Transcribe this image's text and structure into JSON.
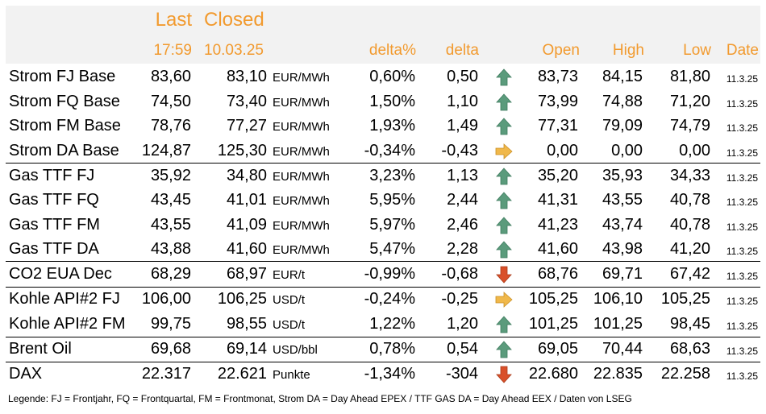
{
  "header": {
    "last": "Last",
    "closed": "Closed",
    "last_time": "17:59",
    "closed_date": "10.03.25",
    "delta_pct": "delta%",
    "delta": "delta",
    "open": "Open",
    "high": "High",
    "low": "Low",
    "date": "Date"
  },
  "colors": {
    "header_text": "#f29a2e",
    "up": "#5b9b7c",
    "down": "#d9502a",
    "flat": "#f0b84a"
  },
  "rows": [
    {
      "name": "Strom FJ Base",
      "last": "83,60",
      "closed": "83,10",
      "unit": "EUR/MWh",
      "delta_pct": "0,60%",
      "delta": "0,50",
      "trend": "up",
      "open": "83,73",
      "high": "84,15",
      "low": "81,80",
      "date": "11.3.25"
    },
    {
      "name": "Strom FQ Base",
      "last": "74,50",
      "closed": "73,40",
      "unit": "EUR/MWh",
      "delta_pct": "1,50%",
      "delta": "1,10",
      "trend": "up",
      "open": "73,99",
      "high": "74,88",
      "low": "71,20",
      "date": "11.3.25"
    },
    {
      "name": "Strom FM Base",
      "last": "78,76",
      "closed": "77,27",
      "unit": "EUR/MWh",
      "delta_pct": "1,93%",
      "delta": "1,49",
      "trend": "up",
      "open": "77,31",
      "high": "79,09",
      "low": "74,79",
      "date": "11.3.25"
    },
    {
      "name": "Strom DA Base",
      "last": "124,87",
      "closed": "125,30",
      "unit": "EUR/MWh",
      "delta_pct": "-0,34%",
      "delta": "-0,43",
      "trend": "flat",
      "open": "0,00",
      "high": "0,00",
      "low": "0,00",
      "date": "11.3.25"
    },
    {
      "name": "Gas TTF FJ",
      "last": "35,92",
      "closed": "34,80",
      "unit": "EUR/MWh",
      "delta_pct": "3,23%",
      "delta": "1,13",
      "trend": "up",
      "open": "35,20",
      "high": "35,93",
      "low": "34,33",
      "date": "11.3.25"
    },
    {
      "name": "Gas TTF FQ",
      "last": "43,45",
      "closed": "41,01",
      "unit": "EUR/MWh",
      "delta_pct": "5,95%",
      "delta": "2,44",
      "trend": "up",
      "open": "41,31",
      "high": "43,55",
      "low": "40,78",
      "date": "11.3.25"
    },
    {
      "name": "Gas TTF FM",
      "last": "43,55",
      "closed": "41,09",
      "unit": "EUR/MWh",
      "delta_pct": "5,97%",
      "delta": "2,46",
      "trend": "up",
      "open": "41,23",
      "high": "43,74",
      "low": "40,78",
      "date": "11.3.25"
    },
    {
      "name": "Gas TTF DA",
      "last": "43,88",
      "closed": "41,60",
      "unit": "EUR/MWh",
      "delta_pct": "5,47%",
      "delta": "2,28",
      "trend": "up",
      "open": "41,60",
      "high": "43,98",
      "low": "41,20",
      "date": "11.3.25"
    },
    {
      "name": "CO2 EUA Dec",
      "last": "68,29",
      "closed": "68,97",
      "unit": "EUR/t",
      "delta_pct": "-0,99%",
      "delta": "-0,68",
      "trend": "down",
      "open": "68,76",
      "high": "69,71",
      "low": "67,42",
      "date": "11.3.25"
    },
    {
      "name": "Kohle API#2 FJ",
      "last": "106,00",
      "closed": "106,25",
      "unit": "USD/t",
      "delta_pct": "-0,24%",
      "delta": "-0,25",
      "trend": "flat",
      "open": "105,25",
      "high": "106,10",
      "low": "105,25",
      "date": "11.3.25"
    },
    {
      "name": "Kohle API#2 FM",
      "last": "99,75",
      "closed": "98,55",
      "unit": "USD/t",
      "delta_pct": "1,22%",
      "delta": "1,20",
      "trend": "up",
      "open": "101,25",
      "high": "101,25",
      "low": "98,45",
      "date": "11.3.25"
    },
    {
      "name": "Brent Oil",
      "last": "69,68",
      "closed": "69,14",
      "unit": "USD/bbl",
      "delta_pct": "0,78%",
      "delta": "0,54",
      "trend": "up",
      "open": "69,05",
      "high": "70,44",
      "low": "68,63",
      "date": "11.3.25"
    },
    {
      "name": "DAX",
      "last": "22.317",
      "closed": "22.621",
      "unit": "Punkte",
      "delta_pct": "-1,34%",
      "delta": "-304",
      "trend": "down",
      "open": "22.680",
      "high": "22.835",
      "low": "22.258",
      "date": "11.3.25"
    }
  ],
  "legend": "Legende: FJ = Frontjahr, FQ = Frontquartal, FM = Frontmonat, Strom DA = Day Ahead EPEX / TTF GAS DA = Day Ahead EEX / Daten von LSEG"
}
